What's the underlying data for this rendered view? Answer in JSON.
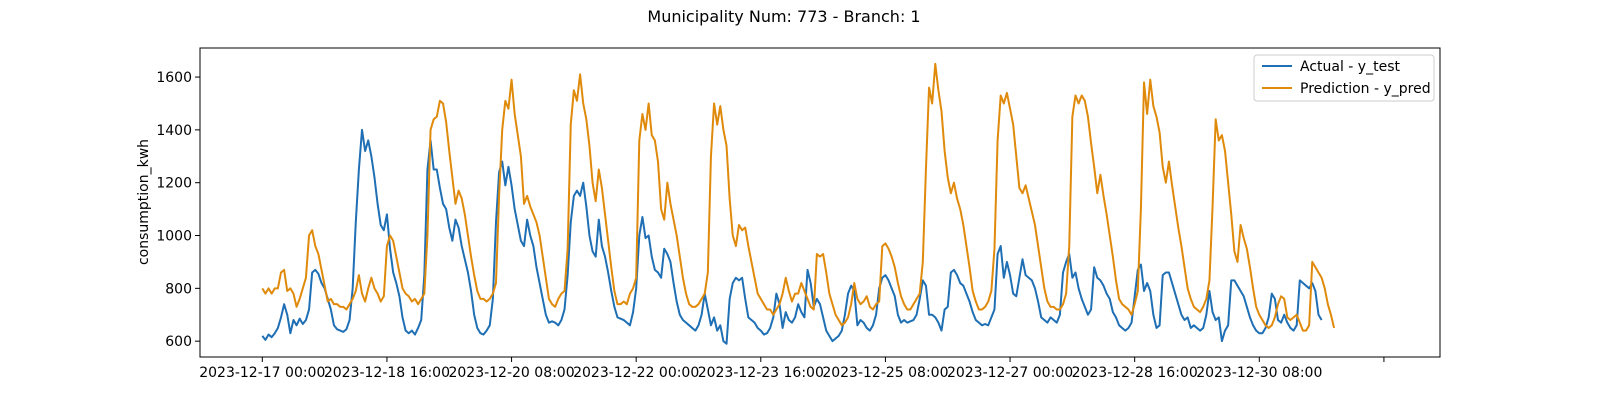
{
  "chart_data": {
    "type": "line",
    "title": "Municipality Num: 773 - Branch: 1",
    "xlabel": "",
    "ylabel": "consumption_kwh",
    "ylim": [
      540,
      1710
    ],
    "yticks": [
      600,
      800,
      1000,
      1200,
      1400,
      1600
    ],
    "x_start": "2023-12-17 00:00",
    "x_step_hours": 1,
    "xlim_hours": [
      -20,
      378
    ],
    "xticks": [
      {
        "hour": 0,
        "label": "2023-12-17 00:00"
      },
      {
        "hour": 40,
        "label": "2023-12-18 16:00"
      },
      {
        "hour": 80,
        "label": "2023-12-20 08:00"
      },
      {
        "hour": 120,
        "label": "2023-12-22 00:00"
      },
      {
        "hour": 160,
        "label": "2023-12-23 16:00"
      },
      {
        "hour": 200,
        "label": "2023-12-25 08:00"
      },
      {
        "hour": 240,
        "label": "2023-12-27 00:00"
      },
      {
        "hour": 280,
        "label": "2023-12-28 16:00"
      },
      {
        "hour": 320,
        "label": "2023-12-30 08:00"
      },
      {
        "hour": 360,
        "label": ""
      }
    ],
    "grid": false,
    "legend_position": "top-right",
    "series": [
      {
        "name": "Actual - y_test",
        "color": "#1f6fb4",
        "values": [
          620,
          605,
          625,
          615,
          630,
          650,
          690,
          740,
          700,
          630,
          680,
          660,
          685,
          665,
          680,
          720,
          860,
          870,
          855,
          820,
          800,
          760,
          720,
          660,
          645,
          640,
          635,
          645,
          680,
          800,
          1050,
          1250,
          1400,
          1320,
          1360,
          1300,
          1220,
          1120,
          1040,
          1020,
          1080,
          950,
          860,
          820,
          770,
          690,
          640,
          630,
          640,
          625,
          650,
          680,
          850,
          1250,
          1360,
          1250,
          1250,
          1180,
          1120,
          1100,
          1030,
          980,
          1060,
          1030,
          960,
          910,
          860,
          790,
          700,
          650,
          630,
          625,
          640,
          660,
          760,
          1050,
          1240,
          1280,
          1190,
          1260,
          1190,
          1100,
          1040,
          980,
          960,
          1060,
          1000,
          960,
          880,
          820,
          760,
          700,
          670,
          675,
          670,
          660,
          680,
          720,
          850,
          1050,
          1150,
          1170,
          1150,
          1200,
          1110,
          1000,
          940,
          920,
          1060,
          960,
          920,
          860,
          790,
          730,
          690,
          685,
          680,
          670,
          660,
          710,
          800,
          1000,
          1070,
          990,
          1000,
          920,
          870,
          860,
          840,
          950,
          930,
          900,
          820,
          750,
          700,
          680,
          670,
          660,
          650,
          640,
          660,
          700,
          780,
          720,
          660,
          690,
          640,
          660,
          600,
          590,
          760,
          820,
          840,
          830,
          840,
          760,
          690,
          680,
          670,
          650,
          640,
          625,
          630,
          650,
          690,
          780,
          740,
          650,
          710,
          680,
          670,
          690,
          740,
          710,
          690,
          870,
          820,
          730,
          760,
          740,
          690,
          640,
          620,
          600,
          610,
          620,
          640,
          700,
          780,
          810,
          790,
          660,
          680,
          670,
          650,
          640,
          660,
          700,
          800,
          840,
          850,
          830,
          800,
          770,
          700,
          670,
          680,
          670,
          675,
          680,
          700,
          760,
          830,
          810,
          700,
          700,
          690,
          670,
          640,
          720,
          730,
          860,
          870,
          850,
          820,
          810,
          780,
          750,
          710,
          680,
          670,
          660,
          665,
          660,
          690,
          720,
          930,
          960,
          840,
          900,
          850,
          780,
          770,
          840,
          910,
          850,
          840,
          830,
          800,
          750,
          690,
          680,
          670,
          690,
          680,
          670,
          700,
          860,
          900,
          930,
          840,
          860,
          800,
          760,
          730,
          700,
          720,
          880,
          840,
          830,
          810,
          780,
          760,
          710,
          690,
          660,
          650,
          640,
          650,
          670,
          770,
          870,
          890,
          790,
          820,
          790,
          700,
          650,
          660,
          850,
          860,
          860,
          820,
          780,
          740,
          700,
          680,
          690,
          650,
          660,
          650,
          640,
          650,
          700,
          790,
          710,
          680,
          690,
          600,
          640,
          660,
          830,
          830,
          810,
          790,
          770,
          730,
          690,
          660,
          640,
          630,
          630,
          650,
          690,
          780,
          760,
          680,
          670,
          700,
          670,
          650,
          640,
          660,
          830,
          820,
          810,
          800,
          820,
          790,
          700,
          680
        ]
      },
      {
        "name": "Prediction - y_pred",
        "color": "#e08a0b",
        "values": [
          800,
          780,
          800,
          780,
          800,
          800,
          860,
          870,
          790,
          800,
          780,
          730,
          760,
          800,
          840,
          1000,
          1020,
          960,
          930,
          870,
          810,
          750,
          760,
          740,
          740,
          730,
          730,
          720,
          740,
          760,
          790,
          850,
          780,
          750,
          800,
          840,
          800,
          780,
          750,
          770,
          960,
          1000,
          980,
          920,
          860,
          800,
          780,
          770,
          750,
          760,
          740,
          760,
          780,
          1000,
          1400,
          1440,
          1450,
          1510,
          1500,
          1430,
          1320,
          1220,
          1120,
          1170,
          1140,
          1080,
          1000,
          920,
          850,
          790,
          760,
          760,
          750,
          760,
          780,
          820,
          1150,
          1400,
          1510,
          1480,
          1590,
          1460,
          1380,
          1300,
          1120,
          1150,
          1110,
          1080,
          1050,
          1000,
          920,
          840,
          760,
          740,
          730,
          760,
          780,
          790,
          950,
          1420,
          1550,
          1510,
          1610,
          1500,
          1440,
          1340,
          1200,
          1130,
          1250,
          1180,
          1080,
          980,
          880,
          790,
          740,
          740,
          750,
          740,
          780,
          800,
          840,
          1360,
          1460,
          1400,
          1500,
          1380,
          1360,
          1280,
          1100,
          1060,
          1200,
          1120,
          1060,
          1000,
          920,
          840,
          780,
          740,
          730,
          730,
          740,
          760,
          780,
          860,
          1300,
          1500,
          1420,
          1490,
          1400,
          1340,
          1140,
          1000,
          960,
          1040,
          1020,
          1030,
          960,
          900,
          840,
          780,
          760,
          740,
          720,
          720,
          700,
          720,
          740,
          780,
          840,
          790,
          750,
          780,
          780,
          820,
          790,
          760,
          730,
          720,
          930,
          920,
          930,
          860,
          780,
          740,
          700,
          680,
          660,
          670,
          690,
          740,
          820,
          760,
          740,
          750,
          770,
          730,
          720,
          740,
          750,
          960,
          970,
          950,
          920,
          880,
          820,
          770,
          740,
          720,
          720,
          740,
          760,
          780,
          900,
          1250,
          1560,
          1500,
          1650,
          1550,
          1470,
          1320,
          1220,
          1160,
          1200,
          1140,
          1100,
          1040,
          960,
          880,
          790,
          750,
          720,
          720,
          730,
          750,
          790,
          950,
          1360,
          1530,
          1500,
          1540,
          1480,
          1420,
          1300,
          1180,
          1160,
          1190,
          1140,
          1090,
          1040,
          960,
          880,
          800,
          750,
          730,
          730,
          720,
          720,
          740,
          780,
          960,
          1450,
          1530,
          1500,
          1530,
          1510,
          1450,
          1350,
          1260,
          1160,
          1230,
          1150,
          1080,
          1000,
          920,
          830,
          760,
          740,
          730,
          720,
          700,
          740,
          790,
          1100,
          1580,
          1460,
          1590,
          1490,
          1450,
          1390,
          1260,
          1200,
          1280,
          1190,
          1110,
          1030,
          960,
          880,
          800,
          760,
          730,
          720,
          710,
          730,
          760,
          830,
          1110,
          1440,
          1360,
          1380,
          1320,
          1200,
          1080,
          940,
          900,
          1040,
          990,
          950,
          880,
          800,
          730,
          700,
          680,
          660,
          650,
          660,
          690,
          740,
          770,
          760,
          690,
          680,
          690,
          700,
          670,
          640,
          640,
          660,
          900,
          880,
          860,
          840,
          800,
          740,
          700,
          650
        ]
      }
    ]
  }
}
